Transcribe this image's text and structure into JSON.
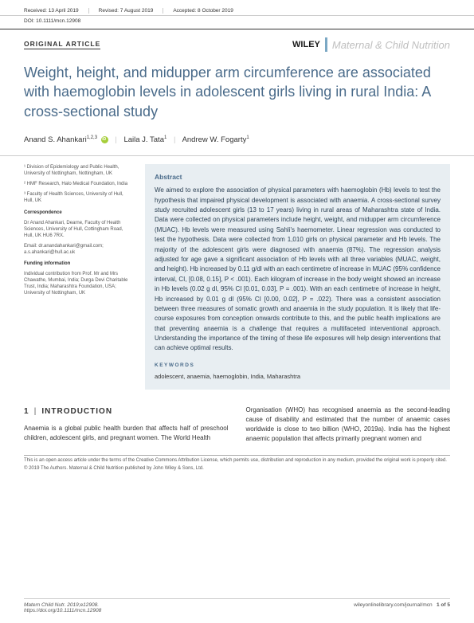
{
  "meta": {
    "received": "Received: 13 April 2019",
    "revised": "Revised: 7 August 2019",
    "accepted": "Accepted: 8 October 2019",
    "doi": "DOI: 10.1111/mcn.12908"
  },
  "header": {
    "article_type": "ORIGINAL ARTICLE",
    "publisher": "WILEY",
    "journal": "Maternal & Child Nutrition"
  },
  "title": "Weight, height, and midupper arm circumference are associated with haemoglobin levels in adolescent girls living in rural India: A cross-sectional study",
  "authors": {
    "a1": {
      "name": "Anand S. Ahankari",
      "sup": "1,2,3"
    },
    "a2": {
      "name": "Laila J. Tata",
      "sup": "1"
    },
    "a3": {
      "name": "Andrew W. Fogarty",
      "sup": "1"
    }
  },
  "affiliations": {
    "aff1": "¹ Division of Epidemiology and Public Health, University of Nottingham, Nottingham, UK",
    "aff2": "² HMF Research, Halo Medical Foundation, India",
    "aff3": "³ Faculty of Health Sciences, University of Hull, Hull, UK",
    "corr_head": "Correspondence",
    "corr_body": "Dr Anand Ahankari, Dearne, Faculty of Health Sciences, University of Hull, Cottingham Road, Hull, UK HU6 7RX.",
    "corr_email": "Email: dr.anandahankari@gmail.com; a.s.ahankari@hull.ac.uk",
    "fund_head": "Funding information",
    "fund_body": "Individual contribution from Prof. Mr and Mrs Chawathe, Mumbai, India; Durga Devi Charitable Trust, India; Maharashtra Foundation, USA; University of Nottingham, UK"
  },
  "abstract": {
    "head": "Abstract",
    "body": "We aimed to explore the association of physical parameters with haemoglobin (Hb) levels to test the hypothesis that impaired physical development is associated with anaemia. A cross-sectional survey study recruited adolescent girls (13 to 17 years) living in rural areas of Maharashtra state of India. Data were collected on physical parameters include height, weight, and midupper arm circumference (MUAC). Hb levels were measured using Sahli's haemometer. Linear regression was conducted to test the hypothesis. Data were collected from 1,010 girls on physical parameter and Hb levels. The majority of the adolescent girls were diagnosed with anaemia (87%). The regression analysis adjusted for age gave a significant association of Hb levels with all three variables (MUAC, weight, and height). Hb increased by 0.11 g/dl with an each centimetre of increase in MUAC (95% confidence interval, CI, [0.08, 0.15], P < .001). Each kilogram of increase in the body weight showed an increase in Hb levels (0.02 g dl, 95% CI [0.01, 0.03], P = .001). With an each centimetre of increase in height, Hb increased by 0.01 g dl (95% CI [0.00, 0.02], P = .022). There was a consistent association between three measures of somatic growth and anaemia in the study population. It is likely that life-course exposures from conception onwards contribute to this, and the public health implications are that preventing anaemia is a challenge that requires a multifaceted interventional approach. Understanding the importance of the timing of these life exposures will help design interventions that can achieve optimal results.",
    "kw_head": "KEYWORDS",
    "kw_body": "adolescent, anaemia, haemoglobin, India, Maharashtra"
  },
  "intro": {
    "heading_num": "1",
    "heading_text": "INTRODUCTION",
    "col1": "Anaemia is a global public health burden that affects half of preschool children, adolescent girls, and pregnant women. The World Health",
    "col2": "Organisation (WHO) has recognised anaemia as the second-leading cause of disability and estimated that the number of anaemic cases worldwide is close to two billion (WHO, 2019a). India has the highest anaemic population that affects primarily pregnant women and"
  },
  "license": {
    "l1": "This is an open access article under the terms of the Creative Commons Attribution License, which permits use, distribution and reproduction in any medium, provided the original work is properly cited.",
    "l2": "© 2019 The Authors. Maternal & Child Nutrition published by John Wiley & Sons, Ltd."
  },
  "footer": {
    "left1": "Matern Child Nutr. 2019;e12908.",
    "left2": "https://doi.org/10.1111/mcn.12908",
    "right_url": "wileyonlinelibrary.com/journal/mcn",
    "page": "1 of 5"
  },
  "colors": {
    "title": "#4a6b8a",
    "abstract_bg": "#e8eef2",
    "divider": "#7ba8c4",
    "journal_gray": "#bfbfbf"
  }
}
